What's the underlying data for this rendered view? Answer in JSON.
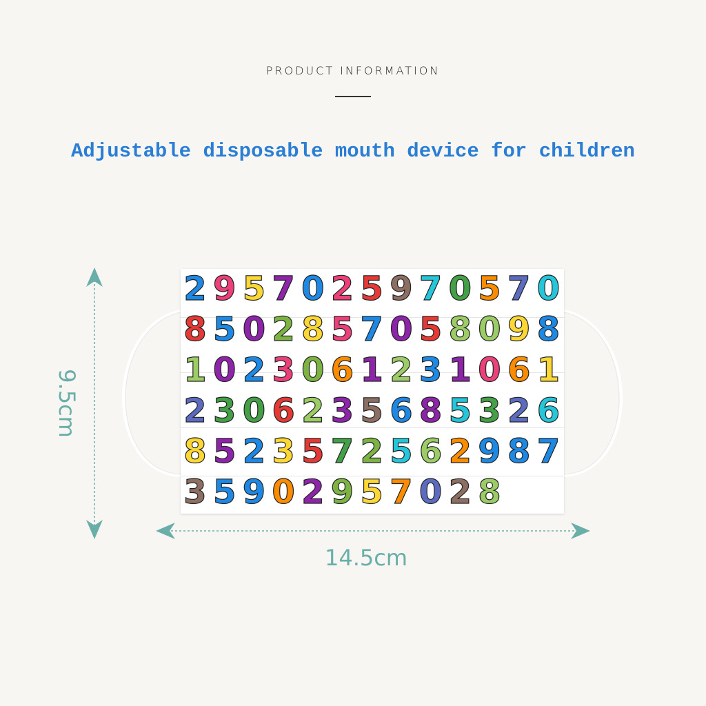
{
  "header": {
    "eyebrow": "PRODUCT INFORMATION",
    "title": "Adjustable disposable mouth device for children"
  },
  "product": {
    "pattern_digits": "2957025970570850285705809810230612310612306235685326852357256298735902957028",
    "pattern_colors": [
      "#e53935",
      "#fdd835",
      "#8e24aa",
      "#fb8c00",
      "#43a047",
      "#1e88e5",
      "#ec407a",
      "#26c6da",
      "#7cb342",
      "#5c6bc0",
      "#8d6e63",
      "#9ccc65"
    ]
  },
  "dimensions": {
    "height_label": "9.5cm",
    "width_label": "14.5cm",
    "color": "#6aaeaa"
  }
}
